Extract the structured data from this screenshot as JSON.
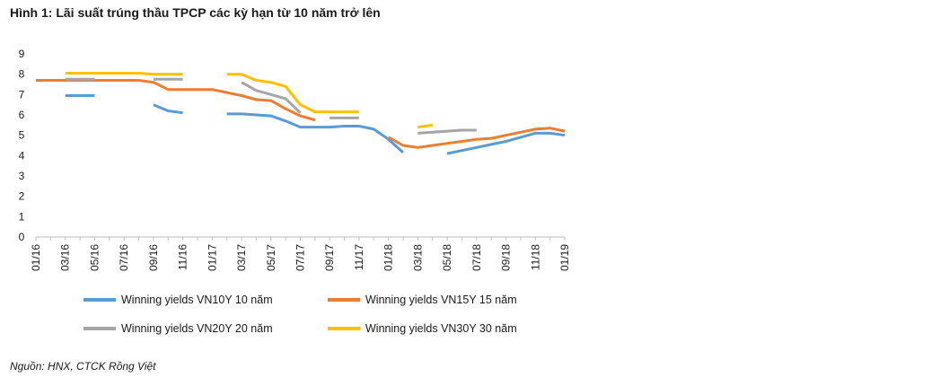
{
  "title": "Hình 1: Lãi suất trúng thầu TPCP các kỳ hạn từ 10 năm trở lên",
  "source": "Nguồn: HNX, CTCK Rồng Việt",
  "chart_data": {
    "type": "line",
    "title": "Hình 1: Lãi suất trúng thầu TPCP các kỳ hạn từ 10 năm trở lên",
    "xlabel": "",
    "ylabel": "",
    "ylim": [
      0,
      9
    ],
    "yticks": [
      0,
      1,
      2,
      3,
      4,
      5,
      6,
      7,
      8,
      9
    ],
    "grid": false,
    "legend_position": "bottom",
    "x": [
      "01/16",
      "02/16",
      "03/16",
      "04/16",
      "05/16",
      "06/16",
      "07/16",
      "08/16",
      "09/16",
      "10/16",
      "11/16",
      "12/16",
      "01/17",
      "02/17",
      "03/17",
      "04/17",
      "05/17",
      "06/17",
      "07/17",
      "08/17",
      "09/17",
      "10/17",
      "11/17",
      "12/17",
      "01/18",
      "02/18",
      "03/18",
      "04/18",
      "05/18",
      "06/18",
      "07/18",
      "08/18",
      "09/18",
      "10/18",
      "11/18",
      "12/18",
      "01/19"
    ],
    "xtick_labels": [
      "01/16",
      "03/16",
      "05/16",
      "07/16",
      "09/16",
      "11/16",
      "01/17",
      "03/17",
      "05/17",
      "07/17",
      "09/17",
      "11/17",
      "01/18",
      "03/18",
      "05/18",
      "07/18",
      "09/18",
      "11/18",
      "01/19"
    ],
    "series": [
      {
        "name": "Winning yields VN10Y 10 năm",
        "color": "#5b9bd5",
        "values": [
          null,
          null,
          6.95,
          6.95,
          6.95,
          null,
          null,
          null,
          6.5,
          6.2,
          6.1,
          null,
          null,
          6.05,
          6.05,
          6.0,
          5.95,
          5.7,
          5.4,
          5.4,
          5.4,
          5.45,
          5.45,
          5.3,
          4.8,
          4.15,
          null,
          null,
          4.1,
          4.25,
          4.4,
          4.55,
          4.7,
          4.9,
          5.1,
          5.1,
          5.0
        ]
      },
      {
        "name": "Winning yields VN15Y 15 năm",
        "color": "#ed7d31",
        "values": [
          7.7,
          7.7,
          7.7,
          7.7,
          7.7,
          7.7,
          7.7,
          7.7,
          7.6,
          7.25,
          7.25,
          7.25,
          7.25,
          7.1,
          6.95,
          6.75,
          6.7,
          6.3,
          5.95,
          5.75,
          null,
          null,
          null,
          null,
          4.9,
          4.5,
          4.4,
          4.5,
          4.6,
          4.7,
          4.8,
          4.85,
          5.0,
          5.15,
          5.3,
          5.35,
          5.2
        ]
      },
      {
        "name": "Winning yields VN20Y 20 năm",
        "color": "#a5a5a5",
        "values": [
          null,
          null,
          7.75,
          7.75,
          7.75,
          null,
          null,
          null,
          7.75,
          7.75,
          7.75,
          null,
          null,
          null,
          7.6,
          7.2,
          7.0,
          6.8,
          6.1,
          null,
          5.85,
          5.85,
          5.85,
          null,
          null,
          null,
          5.1,
          5.15,
          5.2,
          5.25,
          5.25,
          null,
          null,
          null,
          null,
          null,
          null
        ]
      },
      {
        "name": "Winning yields VN30Y 30 năm",
        "color": "#ffc000",
        "values": [
          null,
          null,
          8.05,
          8.05,
          8.05,
          8.05,
          8.05,
          8.05,
          8.0,
          8.0,
          8.0,
          null,
          null,
          8.0,
          8.0,
          7.7,
          7.6,
          7.4,
          6.5,
          6.15,
          6.15,
          6.15,
          6.15,
          null,
          null,
          null,
          5.4,
          5.5,
          null,
          null,
          null,
          null,
          null,
          null,
          null,
          null,
          null
        ]
      }
    ]
  }
}
